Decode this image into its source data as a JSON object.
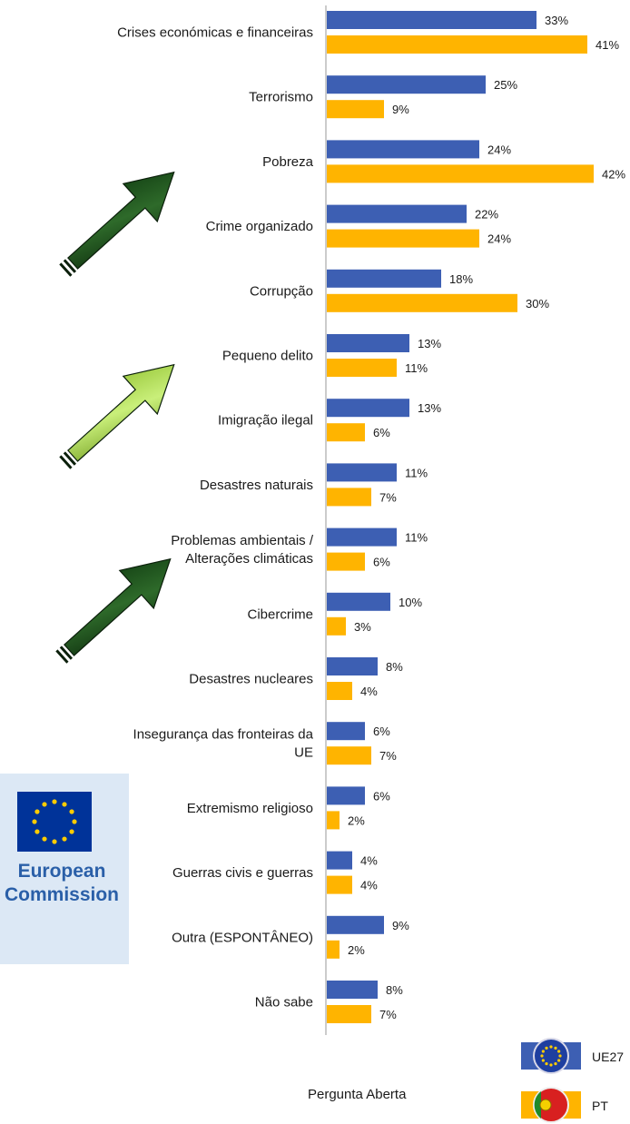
{
  "chart_data": {
    "type": "bar",
    "orientation": "horizontal",
    "categories": [
      [
        "Crises económicas e financeiras"
      ],
      [
        "Terrorismo"
      ],
      [
        "Pobreza"
      ],
      [
        "Crime organizado"
      ],
      [
        "Corrupção"
      ],
      [
        "Pequeno delito"
      ],
      [
        "Imigração ilegal"
      ],
      [
        "Desastres naturais"
      ],
      [
        "Problemas ambientais /",
        "Alterações climáticas"
      ],
      [
        "Cibercrime"
      ],
      [
        "Desastres nucleares"
      ],
      [
        "Insegurança das fronteiras da",
        "UE"
      ],
      [
        "Extremismo religioso"
      ],
      [
        "Guerras civis e guerras"
      ],
      [
        "Outra (ESPONTÂNEO)"
      ],
      [
        "Não sabe"
      ]
    ],
    "series": [
      {
        "name": "UE27",
        "color": "#3d5fb3",
        "values": [
          33,
          25,
          24,
          22,
          18,
          13,
          13,
          11,
          11,
          10,
          8,
          6,
          6,
          4,
          9,
          8
        ],
        "labels": [
          "33%",
          "25%",
          "24%",
          "22%",
          "18%",
          "13%",
          "13%",
          "11%",
          "11%",
          "10%",
          "8%",
          "6%",
          "6%",
          "4%",
          "9%",
          "8%"
        ]
      },
      {
        "name": "PT",
        "color": "#ffb400",
        "values": [
          41,
          9,
          42,
          24,
          30,
          11,
          6,
          7,
          6,
          3,
          4,
          7,
          2,
          4,
          2,
          7
        ],
        "labels": [
          "41%",
          "9%",
          "42%",
          "24%",
          "30%",
          "11%",
          "6%",
          "7%",
          "6%",
          "3%",
          "4%",
          "7%",
          "2%",
          "4%",
          "2%",
          "7%"
        ]
      }
    ],
    "legend_position": "bottom-right",
    "grid": false
  },
  "note": "Pergunta Aberta",
  "logo": {
    "line1": "European",
    "line2": "Commission"
  },
  "arrows": [
    {
      "color": "dark-green",
      "icon": "arrow-up-right-icon"
    },
    {
      "color": "light-green",
      "icon": "arrow-up-right-icon"
    },
    {
      "color": "dark-green",
      "icon": "arrow-up-right-icon"
    }
  ]
}
